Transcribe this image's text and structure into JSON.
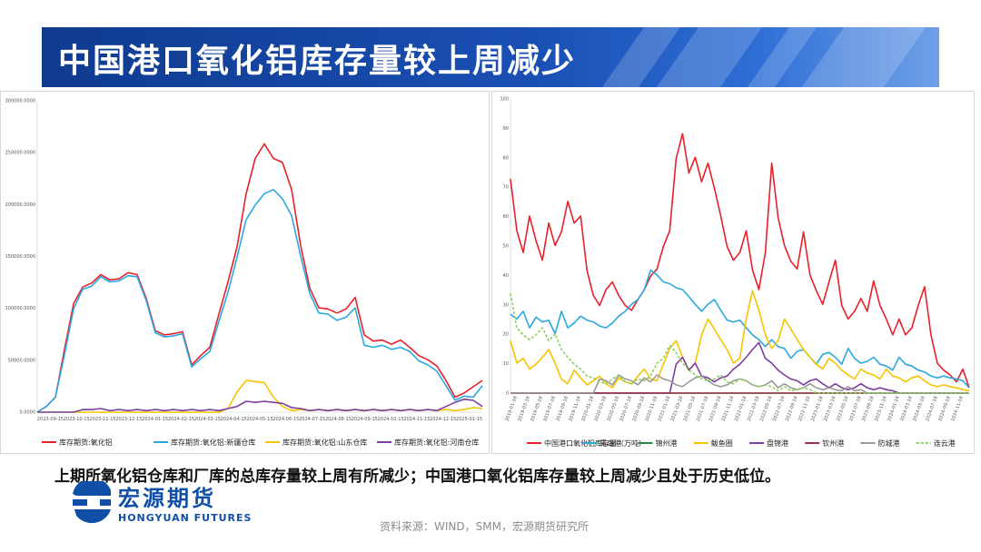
{
  "title": "中国港口氧化铝库存量较上周减少",
  "summary": "上期所氧化铝仓库和厂库的总库存量较上周有所减少；中国港口氧化铝库存量较上周减少且处于历史低位。",
  "source": "资料来源：WIND，SMM，宏源期货研究所",
  "logo": {
    "cn": "宏源期货",
    "en": "HONGYUAN FUTURES",
    "color": "#0f4fa8"
  },
  "chart_data": [
    {
      "type": "line",
      "title": "",
      "ylim": [
        0,
        300000
      ],
      "y_ticks": [
        "0.0000",
        "50000.0000",
        "100000.0000",
        "150000.0000",
        "200000.0000",
        "250000.0000",
        "300000.0000"
      ],
      "x_ticks": [
        "2023-09-15",
        "2023-10-15",
        "2023-11-15",
        "2023-12-15",
        "2024-01-15",
        "2024-02-15",
        "2024-03-15",
        "2024-04-15",
        "2024-05-15",
        "2024-06-15",
        "2024-07-15",
        "2024-08-15",
        "2024-09-15",
        "2024-10-15",
        "2024-11-15",
        "2024-12-15",
        "2025-01-15"
      ],
      "series": [
        {
          "name": "库存期货:氧化铝",
          "color": "#e8202a",
          "values": [
            0,
            5000,
            15000,
            60000,
            105000,
            120000,
            125000,
            132000,
            128000,
            128000,
            135000,
            132000,
            110000,
            78000,
            75000,
            75000,
            78000,
            45000,
            55000,
            62000,
            95000,
            125000,
            160000,
            210000,
            245000,
            258000,
            245000,
            240000,
            215000,
            160000,
            120000,
            100000,
            100000,
            95000,
            100000,
            110000,
            75000,
            68000,
            70000,
            65000,
            70000,
            62000,
            55000,
            50000,
            45000,
            30000,
            15000,
            18000,
            25000,
            30000
          ]
        },
        {
          "name": "库存期货:氧化铝:新疆仓库",
          "color": "#2aa8e0",
          "values": [
            0,
            5000,
            15000,
            55000,
            100000,
            118000,
            122000,
            130000,
            126000,
            126000,
            132000,
            130000,
            108000,
            76000,
            73000,
            73000,
            76000,
            43000,
            52000,
            58000,
            88000,
            115000,
            150000,
            185000,
            200000,
            210000,
            215000,
            205000,
            190000,
            150000,
            115000,
            95000,
            95000,
            88000,
            92000,
            100000,
            65000,
            62000,
            65000,
            60000,
            63000,
            58000,
            50000,
            45000,
            40000,
            25000,
            12000,
            15000,
            15000,
            25000
          ]
        },
        {
          "name": "库存期货:氧化铝:山东仓库",
          "color": "#f5c400",
          "values": [
            0,
            0,
            0,
            0,
            0,
            0,
            0,
            0,
            0,
            0,
            0,
            0,
            0,
            0,
            0,
            0,
            0,
            0,
            0,
            0,
            0,
            3000,
            20000,
            30000,
            30000,
            28000,
            15000,
            5000,
            2000,
            2000,
            2000,
            2000,
            2000,
            2000,
            2000,
            2000,
            2000,
            2000,
            2000,
            2000,
            2000,
            2000,
            2000,
            2000,
            2000,
            2000,
            2000,
            2000,
            5000,
            3000
          ]
        },
        {
          "name": "库存期货:氧化铝:河南仓库",
          "color": "#7b3fa0",
          "values": [
            0,
            0,
            0,
            0,
            0,
            2000,
            3000,
            3000,
            2000,
            2000,
            2000,
            2000,
            2000,
            2000,
            2000,
            2000,
            2000,
            2000,
            2000,
            2000,
            2000,
            3000,
            6000,
            10000,
            10000,
            10000,
            10000,
            8000,
            5000,
            3000,
            2000,
            2000,
            2000,
            2000,
            2000,
            2000,
            2000,
            2000,
            2000,
            2000,
            2000,
            2000,
            2000,
            2000,
            2000,
            5000,
            10000,
            12000,
            12000,
            5000
          ]
        }
      ]
    },
    {
      "type": "line",
      "title": "",
      "ylim": [
        0,
        100
      ],
      "y_ticks": [
        "0",
        "10",
        "20",
        "30",
        "40",
        "50",
        "60",
        "70",
        "80",
        "90",
        "100"
      ],
      "x_ticks": [
        "2019-01-18",
        "2019-03-18",
        "2019-05-18",
        "2019-07-18",
        "2019-09-18",
        "2019-11-18",
        "2020-01-18",
        "2020-03-18",
        "2020-05-18",
        "2020-07-18",
        "2020-09-18",
        "2020-11-18",
        "2021-01-18",
        "2021-03-18",
        "2021-05-18",
        "2021-07-18",
        "2021-09-18",
        "2021-11-18",
        "2022-01-18",
        "2022-03-18",
        "2022-05-18",
        "2022-07-18",
        "2022-09-18",
        "2022-11-18",
        "2023-01-18",
        "2023-03-18",
        "2023-05-18",
        "2023-07-18",
        "2023-09-18",
        "2023-11-18",
        "2024-01-18",
        "2024-03-18",
        "2024-05-18",
        "2024-07-18",
        "2024-09-18",
        "2024-11-18"
      ],
      "series": [
        {
          "name": "中国港口氧化铝库存量（万吨）",
          "color": "#e8202a",
          "values": [
            73,
            55,
            48,
            60,
            52,
            45,
            58,
            50,
            55,
            65,
            58,
            60,
            42,
            33,
            30,
            35,
            38,
            33,
            30,
            28,
            32,
            35,
            40,
            42,
            50,
            55,
            80,
            88,
            75,
            80,
            72,
            78,
            70,
            60,
            50,
            45,
            48,
            55,
            42,
            35,
            48,
            78,
            60,
            50,
            45,
            42,
            55,
            40,
            35,
            30,
            38,
            45,
            30,
            25,
            28,
            32,
            28,
            38,
            30,
            25,
            20,
            25,
            20,
            22,
            30,
            36,
            20,
            10,
            8,
            6,
            4,
            8,
            2
          ]
        },
        {
          "name": "青岛港",
          "color": "#2aa8e0",
          "values": [
            27,
            25,
            28,
            22,
            26,
            24,
            25,
            20,
            28,
            22,
            24,
            26,
            25,
            24,
            23,
            22,
            24,
            26,
            28,
            30,
            32,
            35,
            42,
            40,
            38,
            37,
            36,
            35,
            33,
            30,
            28,
            30,
            32,
            28,
            25,
            24,
            25,
            22,
            20,
            18,
            16,
            18,
            16,
            15,
            12,
            14,
            15,
            12,
            10,
            13,
            14,
            12,
            10,
            15,
            12,
            10,
            11,
            12,
            10,
            9,
            8,
            12,
            10,
            9,
            8,
            7,
            6,
            5,
            6,
            5,
            5,
            4,
            2
          ]
        },
        {
          "name": "锦州港",
          "color": "#1e8c3a",
          "values": [
            0,
            0,
            0,
            0,
            0,
            0,
            0,
            0,
            0,
            0,
            0,
            0,
            0,
            0,
            0,
            0,
            0,
            0,
            0,
            0,
            0,
            0,
            0,
            0,
            0,
            0,
            0,
            0,
            0,
            0,
            0,
            0,
            0,
            0,
            0,
            0,
            0,
            0,
            0,
            0,
            0,
            0,
            0,
            0,
            0,
            0,
            0,
            0,
            0,
            0,
            0,
            0,
            0,
            0,
            0,
            0,
            0,
            0,
            0,
            0,
            0,
            0,
            0,
            0,
            0,
            0,
            0,
            0,
            0,
            0,
            0,
            0,
            0
          ]
        },
        {
          "name": "鲅鱼圈",
          "color": "#f5c400",
          "values": [
            18,
            10,
            12,
            8,
            10,
            12,
            15,
            10,
            5,
            3,
            8,
            5,
            3,
            4,
            6,
            3,
            2,
            5,
            4,
            3,
            6,
            8,
            5,
            4,
            10,
            15,
            18,
            12,
            8,
            10,
            20,
            25,
            22,
            18,
            15,
            10,
            12,
            25,
            35,
            28,
            20,
            15,
            18,
            25,
            22,
            18,
            15,
            12,
            10,
            8,
            12,
            10,
            8,
            6,
            5,
            8,
            7,
            6,
            5,
            8,
            6,
            5,
            4,
            5,
            6,
            4,
            3,
            2,
            3,
            2,
            2,
            1,
            1
          ]
        },
        {
          "name": "盘锦港",
          "color": "#7b3fa0",
          "values": [
            0,
            0,
            0,
            0,
            0,
            0,
            0,
            0,
            0,
            0,
            0,
            0,
            0,
            0,
            0,
            0,
            0,
            0,
            0,
            0,
            0,
            0,
            0,
            0,
            0,
            0,
            10,
            12,
            8,
            10,
            6,
            5,
            4,
            5,
            6,
            8,
            10,
            12,
            15,
            17,
            12,
            10,
            8,
            6,
            5,
            4,
            3,
            4,
            5,
            3,
            2,
            3,
            2,
            1,
            2,
            3,
            2,
            1,
            2,
            1,
            1,
            0,
            0,
            0,
            0,
            0,
            0,
            0,
            0,
            0,
            0,
            0,
            0
          ]
        },
        {
          "name": "钦州港",
          "color": "#a0304a",
          "values": [
            0,
            0,
            0,
            0,
            0,
            0,
            0,
            0,
            0,
            0,
            0,
            0,
            0,
            0,
            0,
            0,
            0,
            0,
            0,
            0,
            0,
            0,
            0,
            0,
            0,
            0,
            0,
            0,
            0,
            0,
            0,
            0,
            0,
            0,
            0,
            0,
            0,
            0,
            0,
            0,
            0,
            0,
            0,
            0,
            0,
            0,
            0,
            0,
            0,
            0,
            0,
            0,
            0,
            0,
            0,
            0,
            0,
            0,
            0,
            0,
            0,
            0,
            0,
            0,
            0,
            0,
            0,
            0,
            0,
            0,
            0,
            0,
            0
          ]
        },
        {
          "name": "防城港",
          "color": "#9a9a9a",
          "values": [
            0,
            0,
            0,
            0,
            0,
            0,
            0,
            0,
            0,
            0,
            0,
            0,
            0,
            0,
            5,
            4,
            3,
            6,
            5,
            4,
            3,
            5,
            4,
            6,
            5,
            4,
            3,
            2,
            4,
            5,
            6,
            4,
            3,
            2,
            3,
            4,
            5,
            4,
            3,
            2,
            3,
            4,
            2,
            3,
            2,
            1,
            2,
            3,
            2,
            1,
            2,
            1,
            1,
            2,
            1,
            1,
            0,
            0,
            0,
            0,
            0,
            0,
            0,
            0,
            0,
            0,
            0,
            0,
            0,
            0,
            0,
            0,
            0
          ]
        },
        {
          "name": "连云港",
          "color": "#8ccf5a",
          "values": [
            34,
            22,
            20,
            18,
            20,
            22,
            18,
            20,
            15,
            12,
            10,
            8,
            6,
            5,
            4,
            3,
            5,
            6,
            4,
            3,
            5,
            4,
            6,
            10,
            12,
            16,
            14,
            10,
            8,
            6,
            5,
            4,
            5,
            6,
            4,
            3,
            5,
            4,
            3,
            2,
            3,
            2,
            1,
            2,
            1,
            1,
            2,
            1,
            0,
            0,
            0,
            0,
            0,
            0,
            0,
            0,
            0,
            0,
            0,
            0,
            0,
            0,
            0,
            0,
            0,
            0,
            0,
            0,
            0,
            0,
            0,
            0,
            0
          ]
        }
      ]
    }
  ]
}
